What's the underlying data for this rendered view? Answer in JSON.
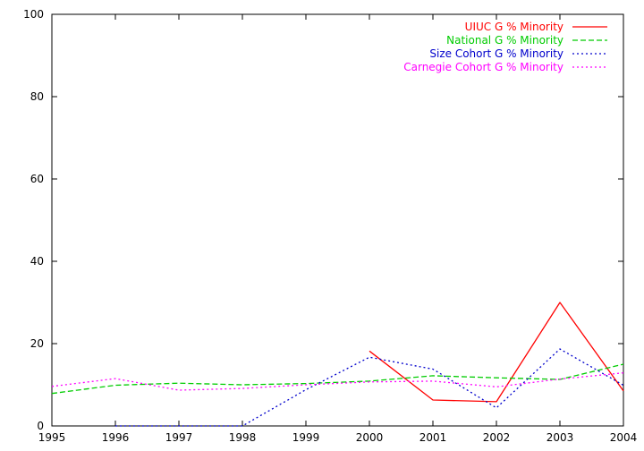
{
  "chart_data": {
    "type": "line",
    "x": [
      1995,
      1996,
      1997,
      1998,
      1999,
      2000,
      2001,
      2002,
      2003,
      2004
    ],
    "xlim": [
      1995,
      2004
    ],
    "ylim": [
      0,
      100
    ],
    "y_ticks": [
      0,
      20,
      40,
      60,
      80,
      100
    ],
    "grid": false,
    "legend_position": "top-right",
    "series": [
      {
        "name": "UIUC G % Minority",
        "color": "#ff0000",
        "dash": "solid",
        "points": [
          [
            2000,
            18.2
          ],
          [
            2001,
            6.3
          ],
          [
            2002,
            5.9
          ],
          [
            2003,
            30.0
          ],
          [
            2004,
            8.5
          ]
        ]
      },
      {
        "name": "National G % Minority",
        "color": "#00cc00",
        "dash": "dashed",
        "points": [
          [
            1995,
            7.9
          ],
          [
            1996,
            9.9
          ],
          [
            1997,
            10.4
          ],
          [
            1998,
            10.0
          ],
          [
            1999,
            10.3
          ],
          [
            2000,
            10.9
          ],
          [
            2001,
            12.2
          ],
          [
            2002,
            11.7
          ],
          [
            2003,
            11.3
          ],
          [
            2004,
            15.0
          ]
        ]
      },
      {
        "name": "Size Cohort G % Minority",
        "color": "#0000cc",
        "dash": "dotted",
        "points": [
          [
            1996,
            0.0
          ],
          [
            1997,
            0.0
          ],
          [
            1998,
            0.0
          ],
          [
            1999,
            8.8
          ],
          [
            2000,
            16.7
          ],
          [
            2001,
            13.8
          ],
          [
            2002,
            4.4
          ],
          [
            2003,
            18.7
          ],
          [
            2004,
            9.9
          ]
        ]
      },
      {
        "name": "Carnegie Cohort G % Minority",
        "color": "#ff00ff",
        "dash": "dotted",
        "points": [
          [
            1995,
            9.6
          ],
          [
            1996,
            11.5
          ],
          [
            1997,
            8.7
          ],
          [
            1998,
            9.1
          ],
          [
            1999,
            10.0
          ],
          [
            2000,
            10.7
          ],
          [
            2001,
            10.9
          ],
          [
            2002,
            9.5
          ],
          [
            2003,
            11.4
          ],
          [
            2004,
            12.9
          ]
        ]
      }
    ]
  }
}
